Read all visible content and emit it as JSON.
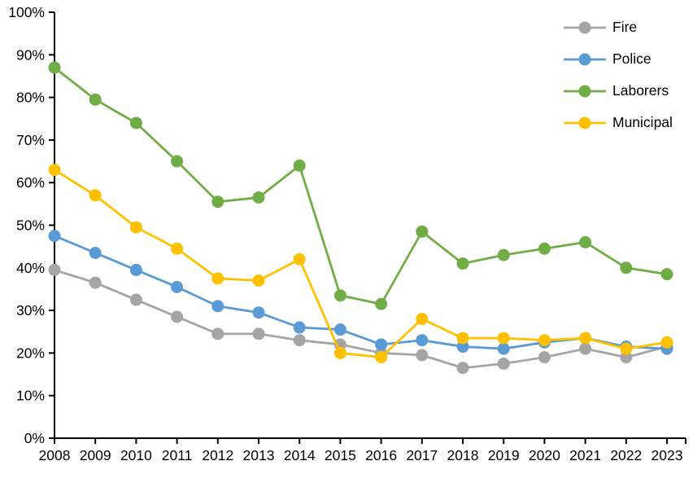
{
  "chart_data": {
    "type": "line",
    "title": "",
    "xlabel": "",
    "ylabel": "",
    "x_categories": [
      "2008",
      "2009",
      "2010",
      "2011",
      "2012",
      "2013",
      "2014",
      "2015",
      "2016",
      "2017",
      "2018",
      "2019",
      "2020",
      "2021",
      "2022",
      "2023"
    ],
    "series": [
      {
        "name": "Fire",
        "color": "#A5A5A5",
        "values": [
          39.5,
          36.5,
          32.5,
          28.5,
          24.5,
          24.5,
          23.0,
          22.0,
          20.0,
          19.5,
          16.5,
          17.5,
          19.0,
          21.0,
          19.0,
          21.5
        ]
      },
      {
        "name": "Police",
        "color": "#5B9BD5",
        "values": [
          47.5,
          43.5,
          39.5,
          35.5,
          31.0,
          29.5,
          26.0,
          25.5,
          22.0,
          23.0,
          21.5,
          21.0,
          22.5,
          23.5,
          21.5,
          21.0
        ]
      },
      {
        "name": "Laborers",
        "color": "#70AD47",
        "values": [
          87.0,
          79.5,
          74.0,
          65.0,
          55.5,
          56.5,
          64.0,
          33.5,
          31.5,
          48.5,
          41.0,
          43.0,
          44.5,
          46.0,
          40.0,
          38.5
        ]
      },
      {
        "name": "Municipal",
        "color": "#FFC000",
        "values": [
          63.0,
          57.0,
          49.5,
          44.5,
          37.5,
          37.0,
          42.0,
          20.0,
          19.0,
          28.0,
          23.5,
          23.5,
          23.0,
          23.5,
          21.0,
          22.5
        ]
      }
    ],
    "y_axis": {
      "min": 0,
      "max": 100,
      "step": 10,
      "tick_labels": [
        "0%",
        "10%",
        "20%",
        "30%",
        "40%",
        "50%",
        "60%",
        "70%",
        "80%",
        "90%",
        "100%"
      ]
    },
    "legend_position": "top-right",
    "grid": false,
    "axis_color": "#000000",
    "background": "#FFFFFF",
    "marker": "circle"
  }
}
